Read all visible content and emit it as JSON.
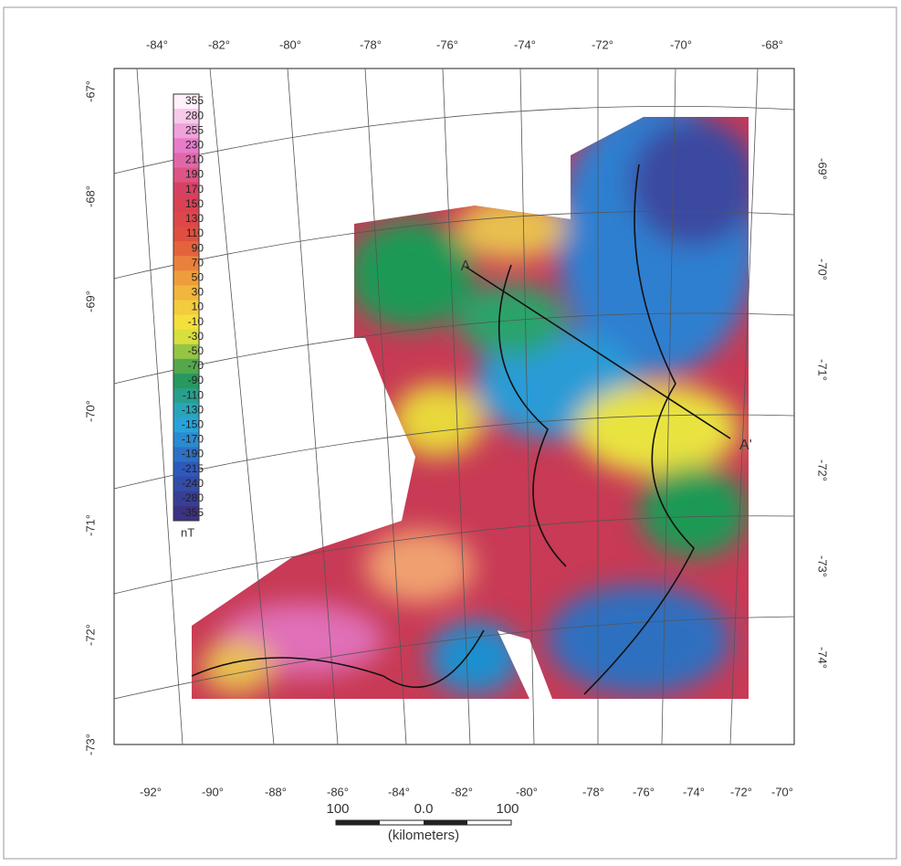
{
  "top_longitudes": [
    "-84°",
    "-82°",
    "-80°",
    "-78°",
    "-76°",
    "-74°",
    "-72°",
    "-70°",
    "-68°"
  ],
  "bottom_longitudes": [
    "-92°",
    "-90°",
    "-88°",
    "-86°",
    "-84°",
    "-82°",
    "-80°",
    "-78°",
    "-76°",
    "-74°",
    "-72°",
    "-70°"
  ],
  "left_latitudes": [
    "-67°",
    "-68°",
    "-69°",
    "-70°",
    "-71°",
    "-72°",
    "-73°"
  ],
  "right_latitudes": [
    "-69°",
    "-70°",
    "-71°",
    "-72°",
    "-73°",
    "-74°"
  ],
  "colorbar": {
    "labels": [
      "355",
      "280",
      "255",
      "230",
      "210",
      "190",
      "170",
      "150",
      "130",
      "110",
      "90",
      "70",
      "50",
      "30",
      "10",
      "-10",
      "-30",
      "-50",
      "-70",
      "-90",
      "-110",
      "-130",
      "-150",
      "-170",
      "-190",
      "-215",
      "-240",
      "-280",
      "-355"
    ],
    "unit": "nT"
  },
  "profile": {
    "start": "A",
    "end": "A'"
  },
  "scale_bar": {
    "labels": [
      "100",
      "0.0",
      "100"
    ],
    "unit": "(kilometers)"
  }
}
